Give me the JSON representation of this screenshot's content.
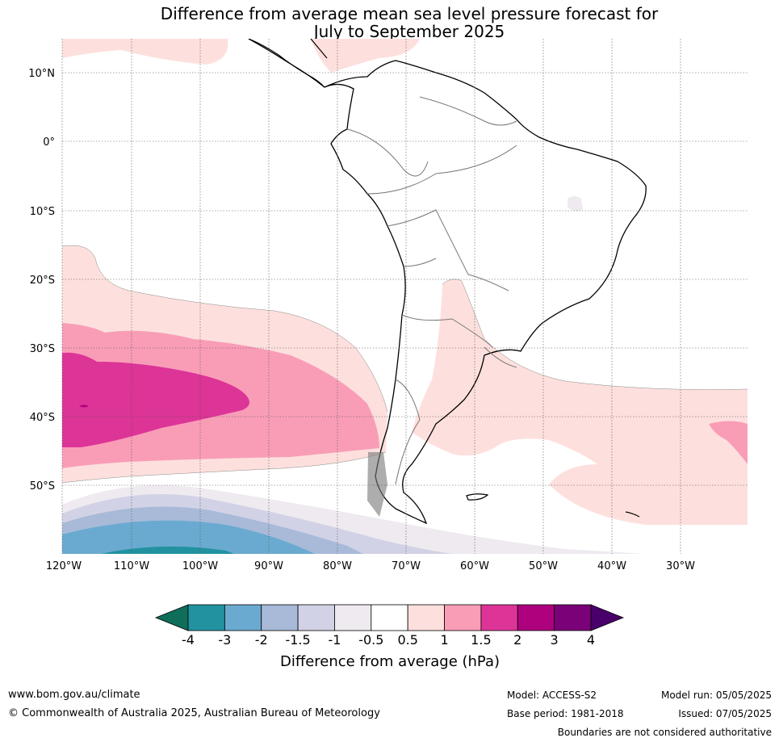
{
  "title_line1": "Difference from average mean sea level pressure forecast for",
  "title_line2": "July to September 2025",
  "lat_labels": [
    "10°N",
    "0°",
    "10°S",
    "20°S",
    "30°S",
    "40°S",
    "50°S"
  ],
  "lon_labels": [
    "120°W",
    "110°W",
    "100°W",
    "90°W",
    "80°W",
    "70°W",
    "60°W",
    "50°W",
    "40°W",
    "30°W"
  ],
  "colorbar": {
    "title": "Difference from average (hPa)",
    "ticks": [
      "-4",
      "-3",
      "-2",
      "-1.5",
      "-1",
      "-0.5",
      "0.5",
      "1",
      "1.5",
      "2",
      "3",
      "4"
    ],
    "colors": [
      "#0e6e5a",
      "#2292a0",
      "#6aaad0",
      "#a8bad8",
      "#d2d2e6",
      "#eeeaf0",
      "#ffffff",
      "#fde0dd",
      "#f99db7",
      "#dd3497",
      "#ae017e",
      "#7a0177",
      "#49006a"
    ]
  },
  "footer": {
    "website": "www.bom.gov.au/climate",
    "copyright": "© Commonwealth of Australia 2025, Australian Bureau of Meteorology",
    "model": "Model: ACCESS-S2",
    "base_period": "Base period: 1981-2018",
    "model_run": "Model run: 05/05/2025",
    "issued": "Issued: 07/05/2025",
    "disclaimer": "Boundaries are not considered authoritative"
  }
}
